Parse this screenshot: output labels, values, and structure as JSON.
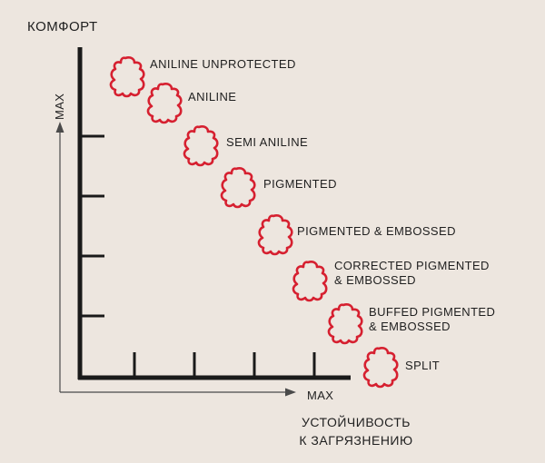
{
  "y_axis": {
    "title": "КОМФОРТ",
    "max_label": "MAX"
  },
  "x_axis": {
    "max_label": "MAX",
    "title_line1": "УСТОЙЧИВОСТЬ",
    "title_line2": "К ЗАГРЯЗНЕНИЮ"
  },
  "icon_color": "#d62030",
  "items": [
    {
      "icon": "leather-hide-icon",
      "line1": "ANILINE UNPROTECTED",
      "line2": ""
    },
    {
      "icon": "leather-hide-icon",
      "line1": "ANILINE",
      "line2": ""
    },
    {
      "icon": "leather-hide-icon",
      "line1": "SEMI ANILINE",
      "line2": ""
    },
    {
      "icon": "leather-hide-icon",
      "line1": "PIGMENTED",
      "line2": ""
    },
    {
      "icon": "leather-hide-icon",
      "line1": "PIGMENTED & EMBOSSED",
      "line2": ""
    },
    {
      "icon": "leather-hide-icon",
      "line1": "CORRECTED PIGMENTED",
      "line2": "& EMBOSSED"
    },
    {
      "icon": "leather-hide-icon",
      "line1": "BUFFED PIGMENTED",
      "line2": "& EMBOSSED"
    },
    {
      "icon": "leather-hide-icon",
      "line1": "SPLIT",
      "line2": ""
    }
  ]
}
